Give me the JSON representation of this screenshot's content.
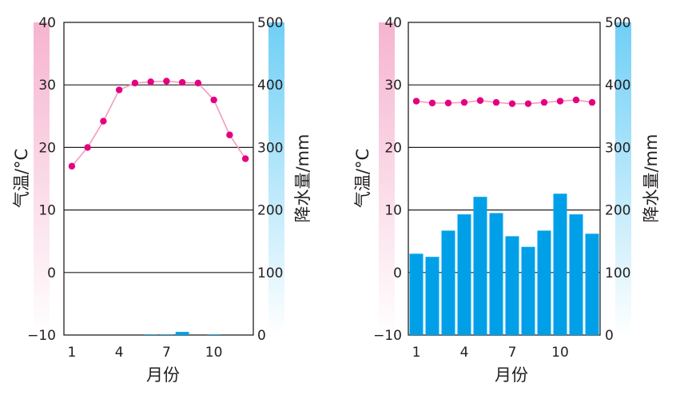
{
  "chart_data": [
    {
      "type": "bar+line",
      "title": "",
      "xlabel": "月份",
      "y_left_label": "气温/°C",
      "y_right_label": "降水量/mm",
      "y_left_range": [
        -10,
        40
      ],
      "y_right_range": [
        0,
        500
      ],
      "y_left_ticks": [
        "40",
        "30",
        "20",
        "10",
        "0",
        "−10"
      ],
      "y_right_ticks": [
        "500",
        "400",
        "300",
        "200",
        "100",
        "0"
      ],
      "x_tick_labels": [
        "1",
        "4",
        "7",
        "10"
      ],
      "x_tick_months": [
        1,
        4,
        7,
        10
      ],
      "months": [
        1,
        2,
        3,
        4,
        5,
        6,
        7,
        8,
        9,
        10,
        11,
        12
      ],
      "temperature": [
        17,
        20,
        24.2,
        29.2,
        30.3,
        30.5,
        30.6,
        30.4,
        30.3,
        27.6,
        22,
        18.2
      ],
      "precipitation": [
        0,
        0,
        0,
        0,
        0,
        1,
        1,
        5,
        0,
        1,
        0,
        0
      ],
      "temperature_color": "#e5007f",
      "temperature_line_color": "#f49ac1",
      "precip_color": "#00a0e9",
      "left_axis_color": "#f6b4cf",
      "right_axis_color": "#6fcff6"
    },
    {
      "type": "bar+line",
      "title": "",
      "xlabel": "月份",
      "y_left_label": "气温/°C",
      "y_right_label": "降水量/mm",
      "y_left_range": [
        -10,
        40
      ],
      "y_right_range": [
        0,
        500
      ],
      "y_left_ticks": [
        "40",
        "30",
        "20",
        "10",
        "0",
        "−10"
      ],
      "y_right_ticks": [
        "500",
        "400",
        "300",
        "200",
        "100",
        "0"
      ],
      "x_tick_labels": [
        "1",
        "4",
        "7",
        "10"
      ],
      "x_tick_months": [
        1,
        4,
        7,
        10
      ],
      "months": [
        1,
        2,
        3,
        4,
        5,
        6,
        7,
        8,
        9,
        10,
        11,
        12
      ],
      "temperature": [
        27.4,
        27.1,
        27.1,
        27.2,
        27.5,
        27.2,
        27,
        27,
        27.2,
        27.4,
        27.6,
        27.2
      ],
      "precipitation": [
        130,
        125,
        167,
        193,
        221,
        195,
        158,
        141,
        167,
        226,
        193,
        162
      ],
      "temperature_color": "#e5007f",
      "temperature_line_color": "#f49ac1",
      "precip_color": "#00a0e9",
      "left_axis_color": "#f6b4cf",
      "right_axis_color": "#6fcff6"
    }
  ]
}
